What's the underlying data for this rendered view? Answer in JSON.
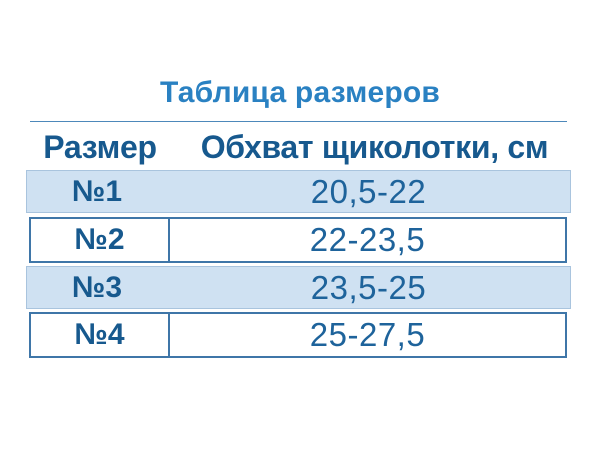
{
  "page": {
    "title": "Таблица размеров"
  },
  "table": {
    "headers": [
      "Размер",
      "Обхват щиколотки, см"
    ],
    "rows": [
      {
        "size": "№1",
        "value": "20,5-22"
      },
      {
        "size": "№2",
        "value": "22-23,5"
      },
      {
        "size": "№3",
        "value": "23,5-25"
      },
      {
        "size": "№4",
        "value": "25-27,5"
      }
    ]
  },
  "chart_data": {
    "type": "table",
    "title": "Таблица размеров",
    "columns": [
      "Размер",
      "Обхват щиколотки, см"
    ],
    "rows": [
      [
        "№1",
        "20,5-22"
      ],
      [
        "№2",
        "22-23,5"
      ],
      [
        "№3",
        "23,5-25"
      ],
      [
        "№4",
        "25-27,5"
      ]
    ]
  },
  "colors": {
    "title_text": "#2a81c2",
    "header_text": "#17598e",
    "value_text": "#1e639b",
    "stripe_background": "#cfe1f2",
    "stripe_border": "#a9c4de",
    "row_border": "#3f76a8",
    "title_rule": "#4d88ba",
    "page_background": "#ffffff"
  }
}
